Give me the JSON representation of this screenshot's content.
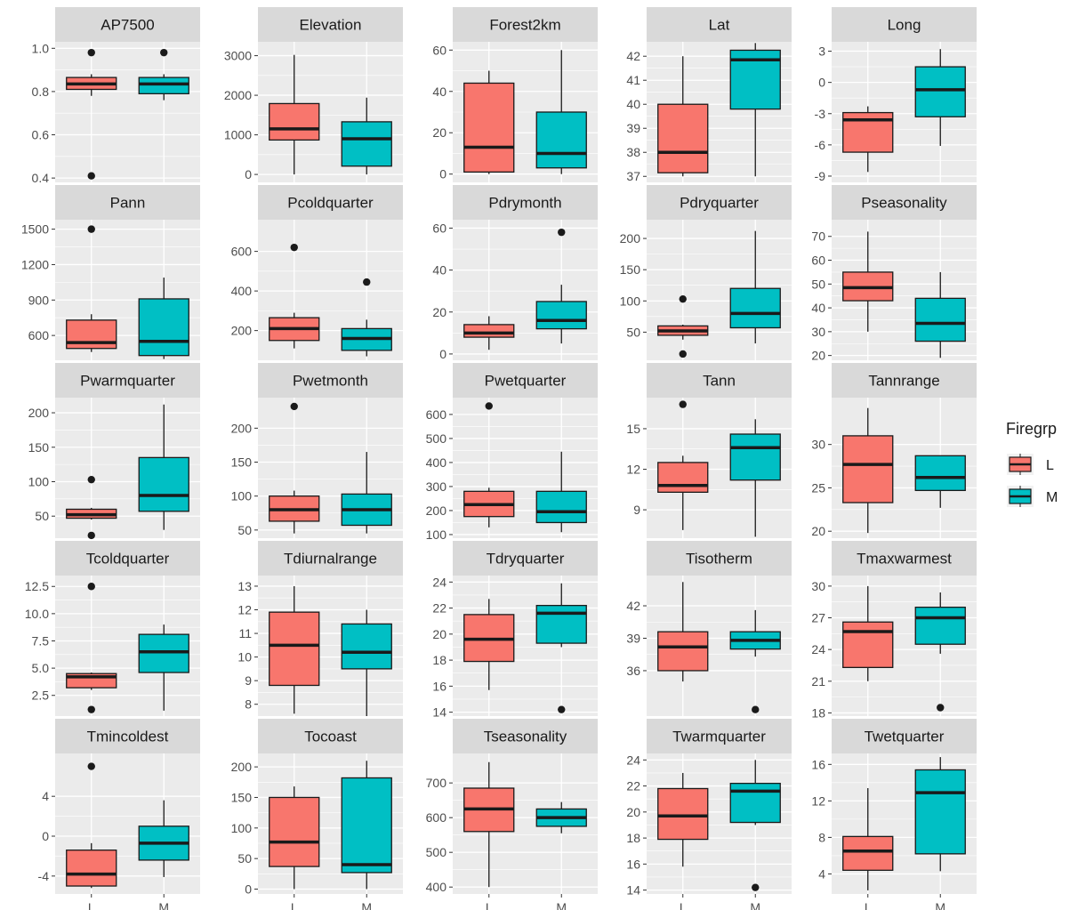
{
  "chart_data": {
    "type": "boxplot",
    "facet_layout": "5 columns x 5 rows, free y scales",
    "categories": [
      "L",
      "M"
    ],
    "legend": {
      "title": "Firegrp",
      "placement": "right",
      "entries": [
        {
          "label": "L",
          "color": "#F8766D"
        },
        {
          "label": "M",
          "color": "#00BFC4"
        }
      ]
    },
    "style": {
      "panel_background": "#EBEBEB",
      "strip_background": "#D9D9D9",
      "grid_major": "#FFFFFF",
      "box_outline": "#1A1A1A"
    },
    "facets": [
      {
        "title": "AP7500",
        "ylim": [
          0.38,
          1.03
        ],
        "ticks": [
          0.4,
          0.6,
          0.8,
          1.0
        ],
        "tick_labels": [
          "0.4",
          "0.6",
          "0.8",
          "1.0"
        ],
        "boxes": [
          {
            "group": "L",
            "min": 0.78,
            "q1": 0.81,
            "median": 0.835,
            "q3": 0.865,
            "max": 0.88,
            "outliers": [
              0.98,
              0.41
            ]
          },
          {
            "group": "M",
            "min": 0.76,
            "q1": 0.79,
            "median": 0.835,
            "q3": 0.865,
            "max": 0.88,
            "outliers": [
              0.98
            ]
          }
        ]
      },
      {
        "title": "Elevation",
        "ylim": [
          -200,
          3350
        ],
        "ticks": [
          0,
          1000,
          2000,
          3000
        ],
        "tick_labels": [
          "0",
          "1000",
          "2000",
          "3000"
        ],
        "boxes": [
          {
            "group": "L",
            "min": 0,
            "q1": 870,
            "median": 1150,
            "q3": 1790,
            "max": 3020,
            "outliers": []
          },
          {
            "group": "M",
            "min": 0,
            "q1": 210,
            "median": 900,
            "q3": 1330,
            "max": 1940,
            "outliers": []
          }
        ]
      },
      {
        "title": "Forest2km",
        "ylim": [
          -4,
          64
        ],
        "ticks": [
          0,
          20,
          40,
          60
        ],
        "tick_labels": [
          "0",
          "20",
          "40",
          "60"
        ],
        "boxes": [
          {
            "group": "L",
            "min": 0,
            "q1": 1,
            "median": 13,
            "q3": 44,
            "max": 50,
            "outliers": []
          },
          {
            "group": "M",
            "min": 0,
            "q1": 3,
            "median": 10,
            "q3": 30,
            "max": 60,
            "outliers": []
          }
        ]
      },
      {
        "title": "Lat",
        "ylim": [
          36.75,
          42.6
        ],
        "ticks": [
          37,
          38,
          39,
          40,
          41,
          42
        ],
        "tick_labels": [
          "37",
          "38",
          "39",
          "40",
          "41",
          "42"
        ],
        "boxes": [
          {
            "group": "L",
            "min": 37.0,
            "q1": 37.15,
            "median": 38.0,
            "q3": 40.0,
            "max": 42.0,
            "outliers": []
          },
          {
            "group": "M",
            "min": 37.0,
            "q1": 39.8,
            "median": 41.85,
            "q3": 42.25,
            "max": 42.55,
            "outliers": []
          }
        ]
      },
      {
        "title": "Long",
        "ylim": [
          -9.6,
          3.9
        ],
        "ticks": [
          -9,
          -6,
          -3,
          0,
          3
        ],
        "tick_labels": [
          "-9",
          "-6",
          "-3",
          "0",
          "3"
        ],
        "boxes": [
          {
            "group": "L",
            "min": -8.6,
            "q1": -6.7,
            "median": -3.6,
            "q3": -2.9,
            "max": -2.3,
            "outliers": []
          },
          {
            "group": "M",
            "min": -6.1,
            "q1": -3.3,
            "median": -0.7,
            "q3": 1.5,
            "max": 3.2,
            "outliers": []
          }
        ]
      },
      {
        "title": "Pann",
        "ylim": [
          390,
          1580
        ],
        "ticks": [
          600,
          900,
          1200,
          1500
        ],
        "tick_labels": [
          "600",
          "900",
          "1200",
          "1500"
        ],
        "boxes": [
          {
            "group": "L",
            "min": 460,
            "q1": 490,
            "median": 540,
            "q3": 730,
            "max": 780,
            "outliers": [
              1500
            ]
          },
          {
            "group": "M",
            "min": 400,
            "q1": 430,
            "median": 550,
            "q3": 910,
            "max": 1090,
            "outliers": []
          }
        ]
      },
      {
        "title": "Pcoldquarter",
        "ylim": [
          50,
          760
        ],
        "ticks": [
          200,
          400,
          600
        ],
        "tick_labels": [
          "200",
          "400",
          "600"
        ],
        "boxes": [
          {
            "group": "L",
            "min": 110,
            "q1": 150,
            "median": 210,
            "q3": 265,
            "max": 290,
            "outliers": [
              620
            ]
          },
          {
            "group": "M",
            "min": 70,
            "q1": 100,
            "median": 160,
            "q3": 210,
            "max": 255,
            "outliers": [
              445
            ]
          }
        ]
      },
      {
        "title": "Pdrymonth",
        "ylim": [
          -3,
          64
        ],
        "ticks": [
          0,
          20,
          40,
          60
        ],
        "tick_labels": [
          "0",
          "20",
          "40",
          "60"
        ],
        "boxes": [
          {
            "group": "L",
            "min": 2,
            "q1": 8,
            "median": 10,
            "q3": 14,
            "max": 18,
            "outliers": []
          },
          {
            "group": "M",
            "min": 5,
            "q1": 12,
            "median": 16,
            "q3": 25,
            "max": 33,
            "outliers": [
              58
            ]
          }
        ]
      },
      {
        "title": "Pdryquarter",
        "ylim": [
          5,
          230
        ],
        "ticks": [
          50,
          100,
          150,
          200
        ],
        "tick_labels": [
          "50",
          "100",
          "150",
          "200"
        ],
        "boxes": [
          {
            "group": "L",
            "min": 38,
            "q1": 45,
            "median": 52,
            "q3": 60,
            "max": 62,
            "outliers": [
              103,
              15
            ]
          },
          {
            "group": "M",
            "min": 32,
            "q1": 57,
            "median": 80,
            "q3": 120,
            "max": 212,
            "outliers": []
          }
        ]
      },
      {
        "title": "Pseasonality",
        "ylim": [
          18,
          77
        ],
        "ticks": [
          20,
          30,
          40,
          50,
          60,
          70
        ],
        "tick_labels": [
          "20",
          "30",
          "40",
          "50",
          "60",
          "70"
        ],
        "boxes": [
          {
            "group": "L",
            "min": 30,
            "q1": 43,
            "median": 48.5,
            "q3": 55,
            "max": 72,
            "outliers": []
          },
          {
            "group": "M",
            "min": 19,
            "q1": 26,
            "median": 33.5,
            "q3": 44,
            "max": 55,
            "outliers": []
          }
        ]
      },
      {
        "title": "Pwarmquarter",
        "ylim": [
          18,
          222
        ],
        "ticks": [
          50,
          100,
          150,
          200
        ],
        "tick_labels": [
          "50",
          "100",
          "150",
          "200"
        ],
        "boxes": [
          {
            "group": "L",
            "min": 45,
            "q1": 47,
            "median": 52,
            "q3": 60,
            "max": 62,
            "outliers": [
              103,
              22
            ]
          },
          {
            "group": "M",
            "min": 30,
            "q1": 57,
            "median": 80,
            "q3": 135,
            "max": 212,
            "outliers": []
          }
        ]
      },
      {
        "title": "Pwetmonth",
        "ylim": [
          38,
          245
        ],
        "ticks": [
          50,
          100,
          150,
          200
        ],
        "tick_labels": [
          "50",
          "100",
          "150",
          "200"
        ],
        "boxes": [
          {
            "group": "L",
            "min": 45,
            "q1": 63,
            "median": 80,
            "q3": 100,
            "max": 108,
            "outliers": [
              232
            ]
          },
          {
            "group": "M",
            "min": 45,
            "q1": 57,
            "median": 80,
            "q3": 103,
            "max": 165,
            "outliers": []
          }
        ]
      },
      {
        "title": "Pwetquarter",
        "ylim": [
          85,
          670
        ],
        "ticks": [
          100,
          200,
          300,
          400,
          500,
          600
        ],
        "tick_labels": [
          "100",
          "200",
          "300",
          "400",
          "500",
          "600"
        ],
        "boxes": [
          {
            "group": "L",
            "min": 130,
            "q1": 175,
            "median": 225,
            "q3": 280,
            "max": 295,
            "outliers": [
              635
            ]
          },
          {
            "group": "M",
            "min": 110,
            "q1": 150,
            "median": 195,
            "q3": 280,
            "max": 445,
            "outliers": []
          }
        ]
      },
      {
        "title": "Tann",
        "ylim": [
          6.9,
          17.3
        ],
        "ticks": [
          9,
          12,
          15
        ],
        "tick_labels": [
          "9",
          "12",
          "15"
        ],
        "boxes": [
          {
            "group": "L",
            "min": 7.5,
            "q1": 10.3,
            "median": 10.8,
            "q3": 12.5,
            "max": 13.0,
            "outliers": [
              16.8
            ]
          },
          {
            "group": "M",
            "min": 7.0,
            "q1": 11.2,
            "median": 13.6,
            "q3": 14.6,
            "max": 15.7,
            "outliers": []
          }
        ]
      },
      {
        "title": "Tannrange",
        "ylim": [
          19.2,
          35.4
        ],
        "ticks": [
          20,
          25,
          30
        ],
        "tick_labels": [
          "20",
          "25",
          "30"
        ],
        "boxes": [
          {
            "group": "L",
            "min": 19.8,
            "q1": 23.3,
            "median": 27.7,
            "q3": 31.0,
            "max": 34.2,
            "outliers": []
          },
          {
            "group": "M",
            "min": 22.7,
            "q1": 24.7,
            "median": 26.2,
            "q3": 28.7,
            "max": 28.7,
            "outliers": []
          }
        ]
      },
      {
        "title": "Tcoldquarter",
        "ylim": [
          0.6,
          13.5
        ],
        "ticks": [
          2.5,
          5.0,
          7.5,
          10.0,
          12.5
        ],
        "tick_labels": [
          "2.5",
          "5.0",
          "7.5",
          "10.0",
          "12.5"
        ],
        "boxes": [
          {
            "group": "L",
            "min": 3.0,
            "q1": 3.2,
            "median": 4.2,
            "q3": 4.5,
            "max": 4.6,
            "outliers": [
              12.5,
              1.2
            ]
          },
          {
            "group": "M",
            "min": 1.1,
            "q1": 4.6,
            "median": 6.5,
            "q3": 8.1,
            "max": 9.0,
            "outliers": []
          }
        ]
      },
      {
        "title": "Tdiurnalrange",
        "ylim": [
          7.5,
          13.45
        ],
        "ticks": [
          8,
          9,
          10,
          11,
          12,
          13
        ],
        "tick_labels": [
          "8",
          "9",
          "10",
          "11",
          "12",
          "13"
        ],
        "boxes": [
          {
            "group": "L",
            "min": 7.6,
            "q1": 8.8,
            "median": 10.5,
            "q3": 11.9,
            "max": 13.0,
            "outliers": []
          },
          {
            "group": "M",
            "min": 7.5,
            "q1": 9.5,
            "median": 10.2,
            "q3": 11.4,
            "max": 12.0,
            "outliers": []
          }
        ]
      },
      {
        "title": "Tdryquarter",
        "ylim": [
          13.7,
          24.5
        ],
        "ticks": [
          14,
          16,
          18,
          20,
          22,
          24
        ],
        "tick_labels": [
          "14",
          "16",
          "18",
          "20",
          "22",
          "24"
        ],
        "boxes": [
          {
            "group": "L",
            "min": 15.7,
            "q1": 17.9,
            "median": 19.6,
            "q3": 21.5,
            "max": 22.7,
            "outliers": []
          },
          {
            "group": "M",
            "min": 19.0,
            "q1": 19.3,
            "median": 21.6,
            "q3": 22.2,
            "max": 23.9,
            "outliers": [
              14.2
            ]
          }
        ]
      },
      {
        "title": "Tisotherm",
        "ylim": [
          31.8,
          44.8
        ],
        "ticks": [
          36,
          39,
          42
        ],
        "tick_labels": [
          "36",
          "39",
          "42"
        ],
        "boxes": [
          {
            "group": "L",
            "min": 35.0,
            "q1": 36.0,
            "median": 38.2,
            "q3": 39.6,
            "max": 44.2,
            "outliers": []
          },
          {
            "group": "M",
            "min": 37.3,
            "q1": 38.0,
            "median": 38.8,
            "q3": 39.6,
            "max": 41.6,
            "outliers": [
              32.4
            ]
          }
        ]
      },
      {
        "title": "Tmaxwarmest",
        "ylim": [
          17.7,
          31.0
        ],
        "ticks": [
          18,
          21,
          24,
          27,
          30
        ],
        "tick_labels": [
          "18",
          "21",
          "24",
          "27",
          "30"
        ],
        "boxes": [
          {
            "group": "L",
            "min": 21.0,
            "q1": 22.3,
            "median": 25.7,
            "q3": 26.6,
            "max": 30.0,
            "outliers": []
          },
          {
            "group": "M",
            "min": 23.6,
            "q1": 24.5,
            "median": 27.0,
            "q3": 28.0,
            "max": 29.4,
            "outliers": [
              18.5
            ]
          }
        ]
      },
      {
        "title": "Tmincoldest",
        "ylim": [
          -5.8,
          8.3
        ],
        "ticks": [
          -4,
          0,
          4
        ],
        "tick_labels": [
          "-4",
          "0",
          "4"
        ],
        "boxes": [
          {
            "group": "L",
            "min": -5.2,
            "q1": -5.0,
            "median": -3.8,
            "q3": -1.4,
            "max": -0.7,
            "outliers": [
              7.0
            ]
          },
          {
            "group": "M",
            "min": -4.1,
            "q1": -2.4,
            "median": -0.7,
            "q3": 1.0,
            "max": 3.6,
            "outliers": []
          }
        ]
      },
      {
        "title": "Tocoast",
        "ylim": [
          -8,
          222
        ],
        "ticks": [
          0,
          50,
          100,
          150,
          200
        ],
        "tick_labels": [
          "0",
          "50",
          "100",
          "150",
          "200"
        ],
        "boxes": [
          {
            "group": "L",
            "min": 0,
            "q1": 37,
            "median": 77,
            "q3": 150,
            "max": 168,
            "outliers": []
          },
          {
            "group": "M",
            "min": 0,
            "q1": 27,
            "median": 40,
            "q3": 182,
            "max": 210,
            "outliers": []
          }
        ]
      },
      {
        "title": "Tseasonality",
        "ylim": [
          380,
          785
        ],
        "ticks": [
          400,
          500,
          600,
          700
        ],
        "tick_labels": [
          "400",
          "500",
          "600",
          "700"
        ],
        "boxes": [
          {
            "group": "L",
            "min": 400,
            "q1": 560,
            "median": 625,
            "q3": 685,
            "max": 760,
            "outliers": []
          },
          {
            "group": "M",
            "min": 555,
            "q1": 575,
            "median": 600,
            "q3": 625,
            "max": 645,
            "outliers": []
          }
        ]
      },
      {
        "title": "Twarmquarter",
        "ylim": [
          13.7,
          24.5
        ],
        "ticks": [
          14,
          16,
          18,
          20,
          22,
          24
        ],
        "tick_labels": [
          "14",
          "16",
          "18",
          "20",
          "22",
          "24"
        ],
        "boxes": [
          {
            "group": "L",
            "min": 15.8,
            "q1": 17.9,
            "median": 19.7,
            "q3": 21.8,
            "max": 23.0,
            "outliers": []
          },
          {
            "group": "M",
            "min": 19.0,
            "q1": 19.2,
            "median": 21.6,
            "q3": 22.2,
            "max": 24.0,
            "outliers": [
              14.2
            ]
          }
        ]
      },
      {
        "title": "Twetquarter",
        "ylim": [
          1.8,
          17.2
        ],
        "ticks": [
          4,
          8,
          12,
          16
        ],
        "tick_labels": [
          "4",
          "8",
          "12",
          "16"
        ],
        "boxes": [
          {
            "group": "L",
            "min": 2.2,
            "q1": 4.4,
            "median": 6.5,
            "q3": 8.1,
            "max": 13.4,
            "outliers": []
          },
          {
            "group": "M",
            "min": 4.3,
            "q1": 6.2,
            "median": 12.9,
            "q3": 15.4,
            "max": 16.8,
            "outliers": []
          }
        ]
      }
    ]
  }
}
